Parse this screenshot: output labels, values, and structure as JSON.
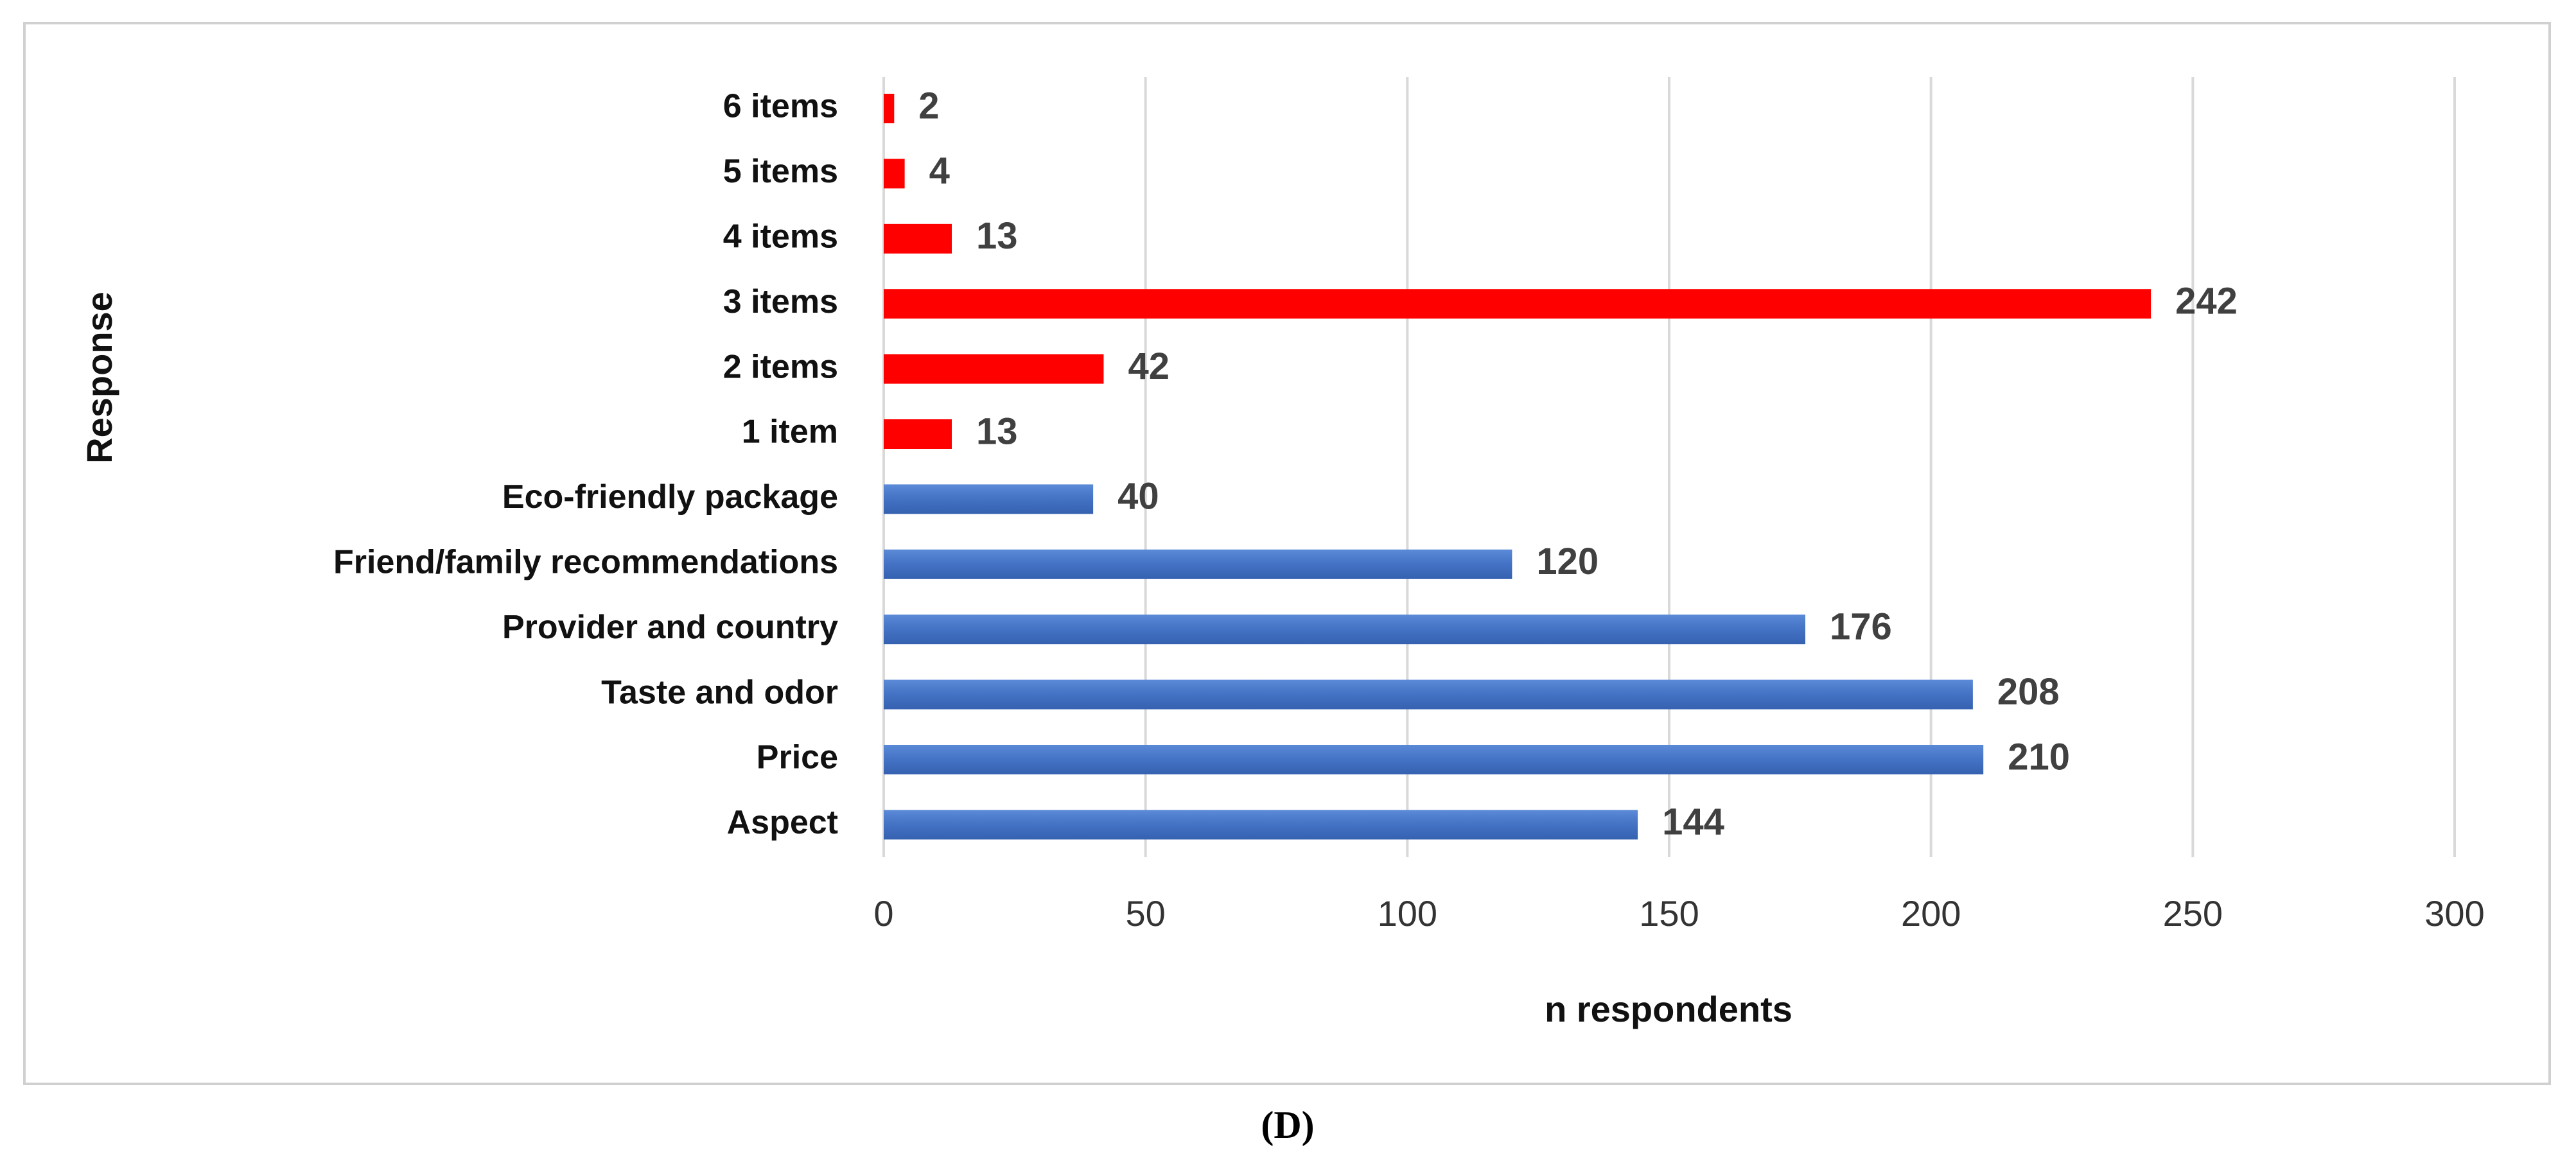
{
  "chart_data": {
    "type": "bar",
    "orientation": "horizontal",
    "caption": "(D)",
    "xlabel": "n respondents",
    "ylabel": "Response",
    "categories": [
      "6 items",
      "5 items",
      "4 items",
      "3 items",
      "2 items",
      "1 item",
      "Eco-friendly package",
      "Friend/family recommendations",
      "Provider and country",
      "Taste and odor",
      "Price",
      "Aspect"
    ],
    "values": [
      2,
      4,
      13,
      242,
      42,
      13,
      40,
      120,
      176,
      208,
      210,
      144
    ],
    "colors": [
      "#ff0000",
      "#ff0000",
      "#ff0000",
      "#ff0000",
      "#ff0000",
      "#ff0000",
      "#4472c4",
      "#4472c4",
      "#4472c4",
      "#4472c4",
      "#4472c4",
      "#4472c4"
    ],
    "xlim": [
      0,
      300
    ],
    "xticks": [
      0,
      50,
      100,
      150,
      200,
      250,
      300
    ],
    "grid": true
  }
}
